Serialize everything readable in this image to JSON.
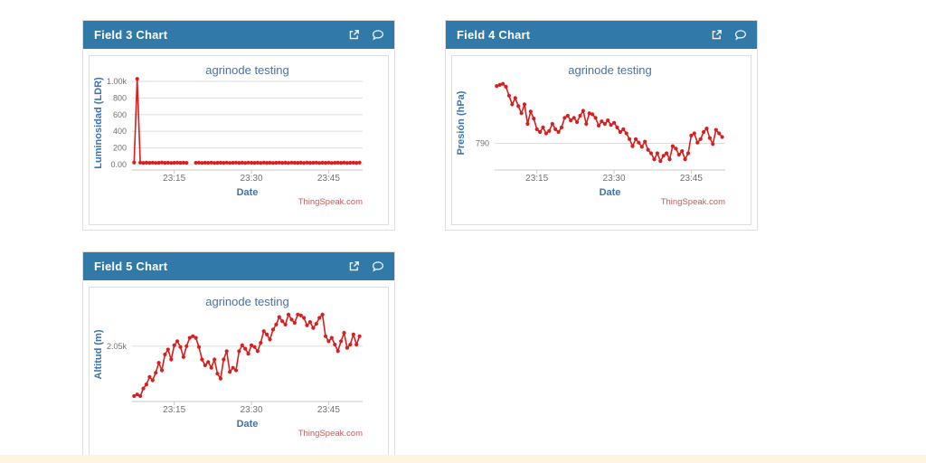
{
  "page": {
    "footer_strip_color": "#fdf5e0"
  },
  "theme": {
    "header_bg": "#3079a8",
    "header_text": "#ffffff",
    "panel_border": "#dddddd",
    "series_color": "#d62020",
    "title_color": "#4572a7",
    "axis_title_color": "#3b73af",
    "tick_label_color": "#707070",
    "grid_color": "#dedede",
    "axis_line_color": "#c8c8c8",
    "credits_color": "#d9534f"
  },
  "charts": [
    {
      "panel_title": "Field 3 Chart",
      "icons": [
        "external-link-icon",
        "comment-icon"
      ],
      "chart_title": "agrinode testing",
      "x_axis_label": "Date",
      "y_axis_label": "Luminosidad (LDR)",
      "credits": "ThingSpeak.com",
      "chart_data": {
        "type": "line",
        "ylim": [
          0,
          1000
        ],
        "x_domain_minutes": [
          6.8,
          51.6
        ],
        "x_start_minute": 7.2,
        "x_step_minute": 0.6,
        "x_ticks": [
          {
            "t": 15,
            "label": "23:15"
          },
          {
            "t": 30,
            "label": "23:30"
          },
          {
            "t": 45,
            "label": "23:45"
          }
        ],
        "y_gridlines": [
          {
            "value": 0,
            "label": "0.00"
          },
          {
            "value": 200,
            "label": "200"
          },
          {
            "value": 400,
            "label": "400"
          },
          {
            "value": 600,
            "label": "600"
          },
          {
            "value": 800,
            "label": "800"
          },
          {
            "value": 1000,
            "label": "1.00k"
          }
        ],
        "values": [
          25,
          1030,
          24,
          20,
          23,
          21,
          24,
          20,
          22,
          25,
          21,
          23,
          20,
          22,
          24,
          21,
          23,
          21,
          null,
          null,
          22,
          24,
          20,
          23,
          21,
          24,
          20,
          22,
          23,
          21,
          24,
          20,
          22,
          24,
          21,
          23,
          20,
          24,
          22,
          21,
          23,
          20,
          24,
          21,
          23,
          20,
          22,
          24,
          21,
          23,
          20,
          24,
          22,
          21,
          23,
          20,
          24,
          21,
          22,
          24,
          20,
          23,
          21,
          24,
          20,
          22,
          23,
          21,
          24,
          20,
          22,
          23,
          21,
          24
        ]
      }
    },
    {
      "panel_title": "Field 4 Chart",
      "icons": [
        "external-link-icon",
        "comment-icon"
      ],
      "chart_title": "agrinode testing",
      "x_axis_label": "Date",
      "y_axis_label": "Presión (hPa)",
      "credits": "ThingSpeak.com",
      "chart_data": {
        "type": "line",
        "ylim": [
          789.4,
          791.75
        ],
        "x_domain_minutes": [
          6.8,
          51.6
        ],
        "x_start_minute": 7.2,
        "x_step_minute": 0.6,
        "x_ticks": [
          {
            "t": 15,
            "label": "23:15"
          },
          {
            "t": 30,
            "label": "23:30"
          },
          {
            "t": 45,
            "label": "23:45"
          }
        ],
        "y_gridlines": [
          {
            "value": 790,
            "label": "790"
          }
        ],
        "values": [
          791.62,
          791.65,
          791.68,
          791.6,
          791.35,
          791.1,
          791.28,
          791.05,
          790.85,
          791.1,
          790.55,
          790.9,
          790.7,
          790.4,
          790.32,
          790.45,
          790.28,
          790.35,
          790.55,
          790.4,
          790.32,
          790.45,
          790.72,
          790.78,
          790.65,
          790.72,
          790.6,
          790.78,
          790.92,
          790.55,
          790.85,
          790.82,
          790.72,
          790.5,
          790.62,
          790.55,
          790.65,
          790.52,
          790.58,
          790.45,
          790.32,
          790.4,
          790.28,
          790.12,
          789.92,
          790.12,
          790.02,
          789.9,
          790.05,
          789.82,
          789.72,
          789.55,
          789.72,
          789.5,
          789.65,
          789.72,
          789.55,
          789.92,
          789.85,
          789.68,
          789.78,
          789.55,
          789.72,
          790.22,
          790.28,
          790.02,
          790.12,
          790.32,
          790.42,
          790.15,
          789.98,
          790.38,
          790.28,
          790.18
        ]
      }
    },
    {
      "panel_title": "Field 5 Chart",
      "icons": [
        "external-link-icon",
        "comment-icon"
      ],
      "chart_title": "agrinode testing",
      "x_axis_label": "Date",
      "y_axis_label": "Altitud (m)",
      "credits": "ThingSpeak.com",
      "chart_data": {
        "type": "line",
        "ylim": [
          1.99,
          2.09
        ],
        "x_domain_minutes": [
          6.8,
          51.6
        ],
        "x_start_minute": 7.2,
        "x_step_minute": 0.6,
        "x_ticks": [
          {
            "t": 15,
            "label": "23:15"
          },
          {
            "t": 30,
            "label": "23:30"
          },
          {
            "t": 45,
            "label": "23:45"
          }
        ],
        "y_gridlines": [
          {
            "value": 2.05,
            "label": "2.05k"
          }
        ],
        "values": [
          1.99,
          1.992,
          1.99,
          1.999,
          2.004,
          2.013,
          2.009,
          2.018,
          2.03,
          2.021,
          2.04,
          2.046,
          2.034,
          2.051,
          2.056,
          2.049,
          2.037,
          2.05,
          2.06,
          2.062,
          2.06,
          2.049,
          2.034,
          2.027,
          2.031,
          2.024,
          2.034,
          2.017,
          2.011,
          2.034,
          2.044,
          2.019,
          2.024,
          2.021,
          2.044,
          2.051,
          2.047,
          2.041,
          2.051,
          2.049,
          2.044,
          2.054,
          2.068,
          2.064,
          2.058,
          2.07,
          2.076,
          2.085,
          2.08,
          2.076,
          2.088,
          2.082,
          2.078,
          2.088,
          2.087,
          2.084,
          2.075,
          2.079,
          2.072,
          2.077,
          2.084,
          2.088,
          2.062,
          2.056,
          2.06,
          2.052,
          2.044,
          2.056,
          2.066,
          2.048,
          2.052,
          2.064,
          2.052,
          2.062
        ]
      }
    }
  ]
}
